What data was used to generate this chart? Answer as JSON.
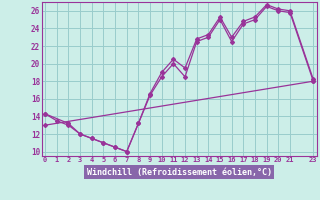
{
  "xlabel": "Windchill (Refroidissement éolien,°C)",
  "background_color": "#cceee8",
  "grid_color": "#99cccc",
  "line_color": "#993399",
  "xlabel_bg": "#8866aa",
  "xlabel_fg": "#ffffff",
  "x_ticks": [
    0,
    1,
    2,
    3,
    4,
    5,
    6,
    7,
    8,
    9,
    10,
    11,
    12,
    13,
    14,
    15,
    16,
    17,
    18,
    19,
    20,
    21,
    23
  ],
  "x_tick_labels": [
    "0",
    "1",
    "2",
    "3",
    "4",
    "5",
    "6",
    "7",
    "8",
    "9",
    "10",
    "11",
    "12",
    "13",
    "14",
    "15",
    "16",
    "17",
    "18",
    "19",
    "20",
    "21",
    "23"
  ],
  "ylim": [
    9.5,
    27
  ],
  "xlim": [
    -0.3,
    23.3
  ],
  "y_ticks": [
    10,
    12,
    14,
    16,
    18,
    20,
    22,
    24,
    26
  ],
  "series1_x": [
    0,
    1,
    2,
    3,
    4,
    5,
    6,
    7,
    8,
    9,
    10,
    11,
    12,
    13,
    14,
    15,
    16,
    17,
    18,
    19,
    20,
    21,
    23
  ],
  "series1_y": [
    14.3,
    13.5,
    13.0,
    12.0,
    11.5,
    11.0,
    10.5,
    10.0,
    13.2,
    16.4,
    18.5,
    20.0,
    18.5,
    22.5,
    23.0,
    25.0,
    22.5,
    24.5,
    25.0,
    26.5,
    26.0,
    25.8,
    18.0
  ],
  "series2_x": [
    0,
    2,
    3,
    4,
    5,
    6,
    7,
    8,
    9,
    10,
    11,
    12,
    13,
    14,
    15,
    16,
    17,
    18,
    19,
    20,
    21,
    23
  ],
  "series2_y": [
    14.3,
    13.2,
    12.0,
    11.5,
    11.0,
    10.5,
    10.0,
    13.2,
    16.6,
    19.0,
    20.5,
    19.5,
    22.8,
    23.3,
    25.3,
    23.0,
    24.8,
    25.3,
    26.7,
    26.2,
    26.0,
    18.2
  ],
  "series3_x": [
    0,
    23
  ],
  "series3_y": [
    13.0,
    18.0
  ]
}
